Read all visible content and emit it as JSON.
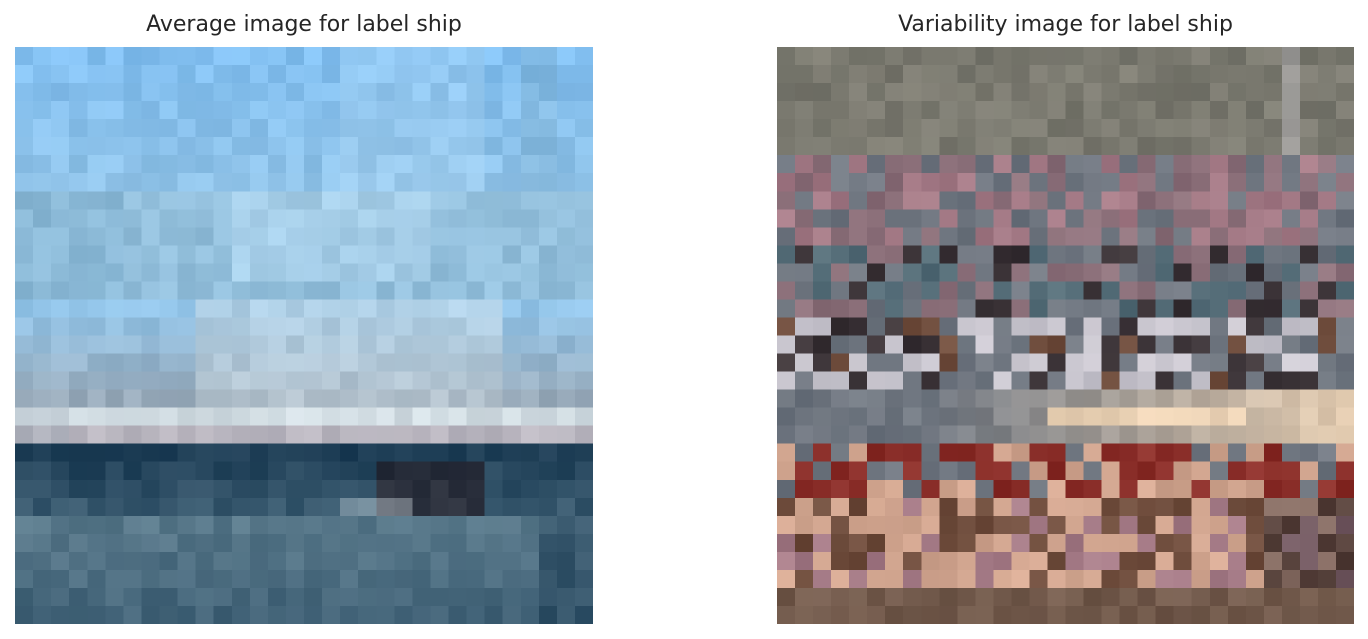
{
  "figure": {
    "panels": [
      {
        "title": "Average image for label ship",
        "image_name": "average-ship-image",
        "grid_size": 32,
        "palette": {
          "sky_top": "#82bff0",
          "sky_mid": "#92c4e8",
          "sky_light": "#b8dcf4",
          "haze": "#7fb0cf",
          "hull_white": "#d2dde3",
          "deck_gray": "#9aa6b2",
          "pink_line": "#a18f9c",
          "sea_dark": "#1d3d55",
          "sea_mid": "#3f6075",
          "sea_low": "#58788a",
          "dark_spot": "#2b1e24"
        }
      },
      {
        "title": "Variability image for label ship",
        "image_name": "variability-ship-image",
        "grid_size": 32,
        "palette": {
          "top_gray": "#7b7a70",
          "mauve": "#8c707a",
          "rose": "#a47a86",
          "slate": "#6f7680",
          "dark": "#3c3438",
          "pale": "#c9c6cf",
          "cream": "#ecd3b6",
          "red": "#8b2f2a",
          "peach": "#d2a690",
          "brown": "#6e4c3c",
          "teal": "#556d78"
        }
      }
    ]
  }
}
